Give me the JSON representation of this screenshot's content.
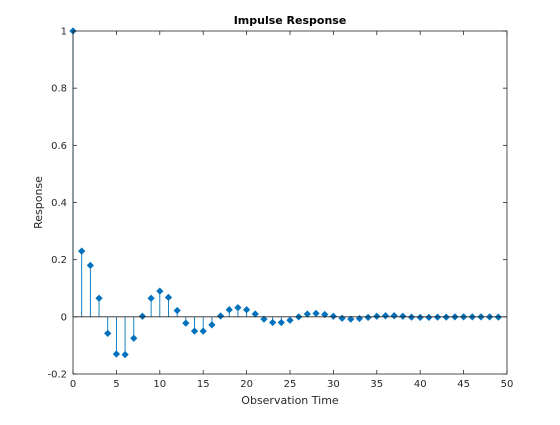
{
  "chart_data": {
    "type": "stem",
    "title": "Impulse Response",
    "xlabel": "Observation Time",
    "ylabel": "Response",
    "xlim": [
      0,
      50
    ],
    "ylim": [
      -0.2,
      1
    ],
    "xticks": [
      0,
      5,
      10,
      15,
      20,
      25,
      30,
      35,
      40,
      45,
      50
    ],
    "yticks": [
      -0.2,
      0,
      0.2,
      0.4,
      0.6,
      0.8,
      1
    ],
    "xtick_labels": [
      "0",
      "5",
      "10",
      "15",
      "20",
      "25",
      "30",
      "35",
      "40",
      "45",
      "50"
    ],
    "ytick_labels": [
      "-0.2",
      "0",
      "0.2",
      "0.4",
      "0.6",
      "0.8",
      "1"
    ],
    "grid": false,
    "series": [
      {
        "color": "#0072bd",
        "marker": "diamond",
        "x": [
          0,
          1,
          2,
          3,
          4,
          5,
          6,
          7,
          8,
          9,
          10,
          11,
          12,
          13,
          14,
          15,
          16,
          17,
          18,
          19,
          20,
          21,
          22,
          23,
          24,
          25,
          26,
          27,
          28,
          29,
          30,
          31,
          32,
          33,
          34,
          35,
          36,
          37,
          38,
          39,
          40,
          41,
          42,
          43,
          44,
          45,
          46,
          47,
          48,
          49
        ],
        "y": [
          1.0,
          0.23,
          0.18,
          0.065,
          -0.058,
          -0.13,
          -0.132,
          -0.075,
          0.002,
          0.065,
          0.09,
          0.068,
          0.022,
          -0.022,
          -0.05,
          -0.05,
          -0.028,
          0.003,
          0.025,
          0.032,
          0.025,
          0.01,
          -0.008,
          -0.02,
          -0.02,
          -0.012,
          0.0,
          0.01,
          0.012,
          0.008,
          0.002,
          -0.005,
          -0.008,
          -0.006,
          -0.002,
          0.002,
          0.004,
          0.004,
          0.002,
          -0.001,
          -0.002,
          -0.002,
          -0.001,
          -0.001,
          0.0,
          0.0,
          0.0,
          0.0,
          0.0,
          -0.001
        ]
      }
    ]
  }
}
